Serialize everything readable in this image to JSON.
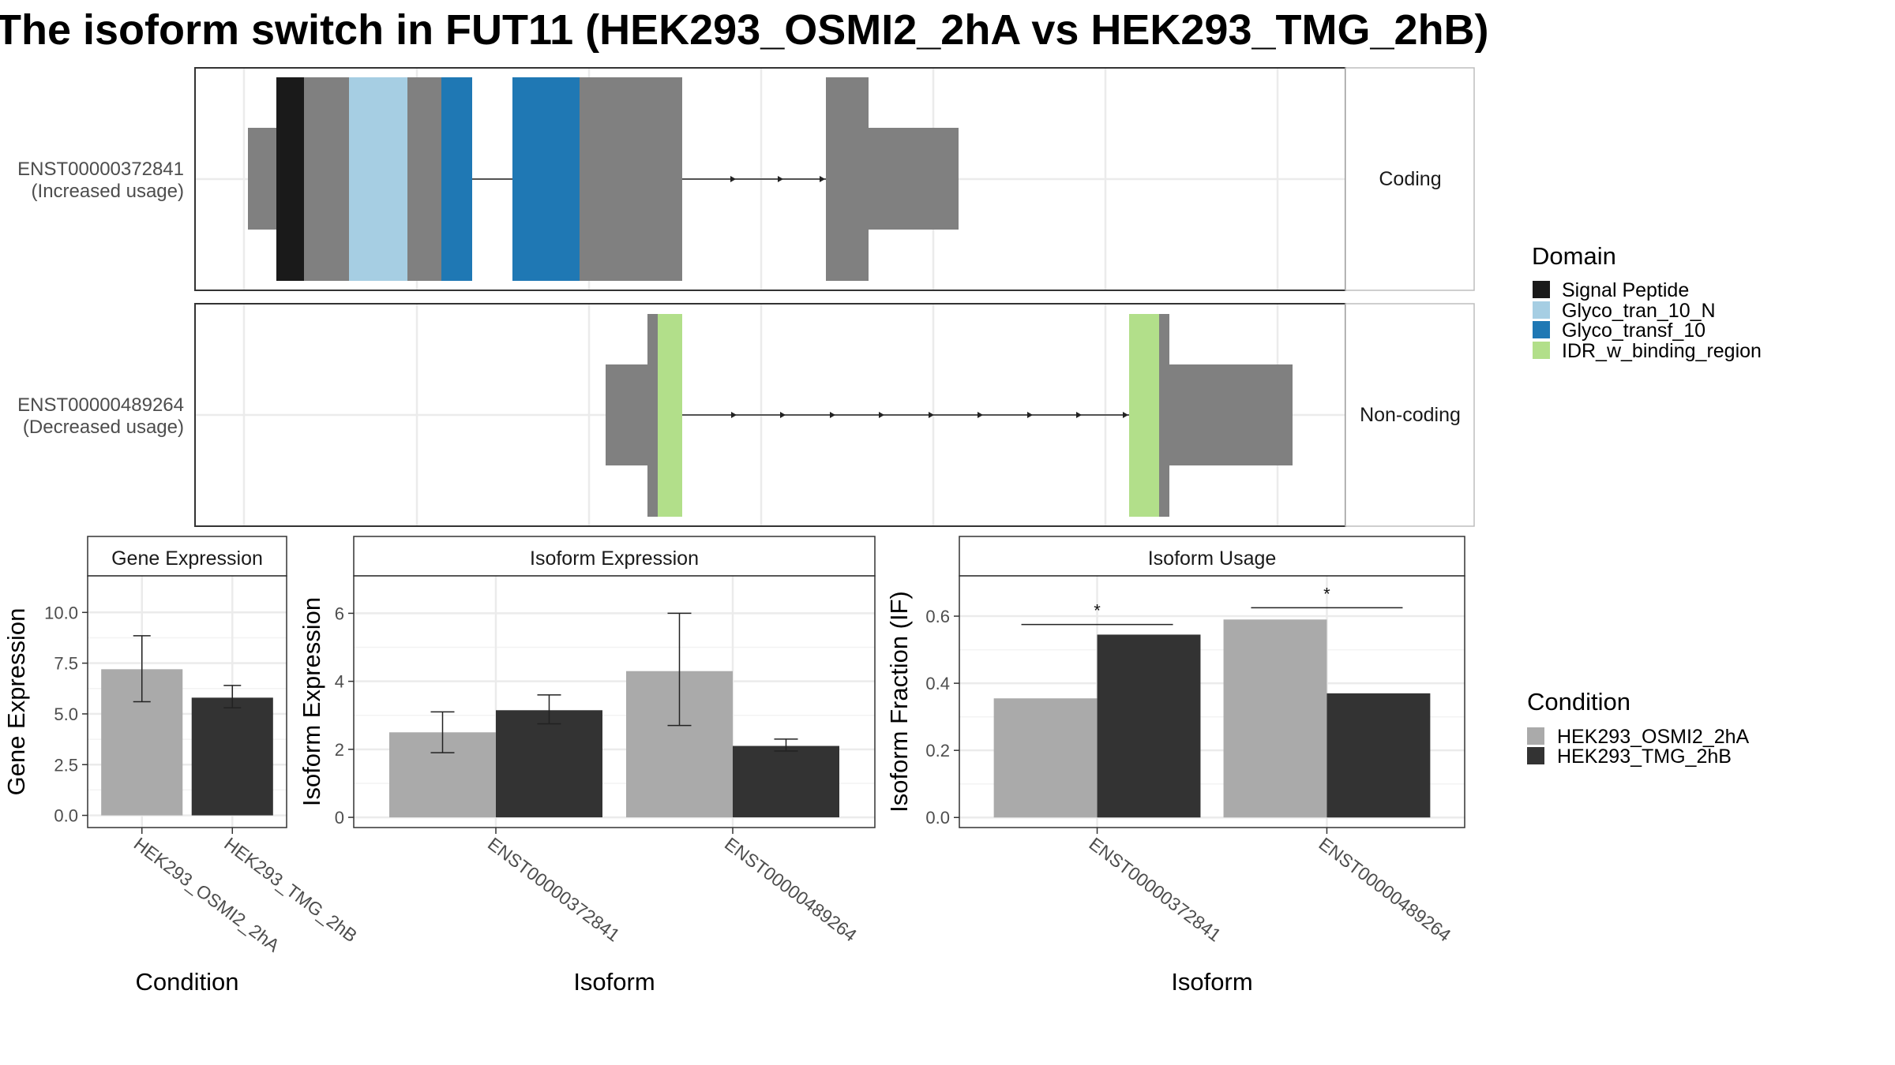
{
  "title": "The isoform switch in FUT11 (HEK293_OSMI2_2hA vs HEK293_TMG_2hB)",
  "transcripts": [
    {
      "id": "ENST00000372841",
      "label_line1": "ENST00000372841",
      "label_line2": "(Increased usage)",
      "strip": "Coding"
    },
    {
      "id": "ENST00000489264",
      "label_line1": "ENST00000489264",
      "label_line2": "(Decreased usage)",
      "strip": "Non-coding"
    }
  ],
  "domain_legend": {
    "title": "Domain",
    "items": [
      {
        "label": "Signal Peptide",
        "color": "#1a1a1a"
      },
      {
        "label": "Glyco_tran_10_N",
        "color": "#a6cee3"
      },
      {
        "label": "Glyco_transf_10",
        "color": "#1f78b4"
      },
      {
        "label": "IDR_w_binding_region",
        "color": "#b2df8a"
      }
    ]
  },
  "condition_legend": {
    "title": "Condition",
    "items": [
      {
        "label": "HEK293_OSMI2_2hA",
        "color": "#aaaaaa"
      },
      {
        "label": "HEK293_TMG_2hB",
        "color": "#333333"
      }
    ]
  },
  "colors": {
    "exon": "#808080",
    "panel_border": "#333333",
    "grid": "#ebebeb",
    "strip_fill": "#ffffff"
  },
  "chart_data": [
    {
      "type": "bar",
      "title": "Gene Expression",
      "xlabel": "Condition",
      "ylabel": "Gene Expression",
      "ylim": [
        -0.6,
        11.8
      ],
      "yticks": [
        0.0,
        2.5,
        5.0,
        7.5,
        10.0
      ],
      "ytick_labels": [
        "0.0",
        "2.5",
        "5.0",
        "7.5",
        "10.0"
      ],
      "categories": [
        "HEK293_OSMI2_2hA",
        "HEK293_TMG_2hB"
      ],
      "values": [
        7.2,
        5.8
      ],
      "err_low": [
        5.6,
        5.3
      ],
      "err_high": [
        8.85,
        6.4
      ]
    },
    {
      "type": "bar",
      "title": "Isoform Expression",
      "xlabel": "Isoform",
      "ylabel": "Isoform Expression",
      "ylim": [
        -0.3,
        7.1
      ],
      "yticks": [
        0,
        2,
        4,
        6
      ],
      "ytick_labels": [
        "0",
        "2",
        "4",
        "6"
      ],
      "categories": [
        "ENST00000372841",
        "ENST00000489264"
      ],
      "series": [
        {
          "name": "HEK293_OSMI2_2hA",
          "values": [
            2.5,
            4.3
          ],
          "err_low": [
            1.9,
            2.7
          ],
          "err_high": [
            3.1,
            6.0
          ]
        },
        {
          "name": "HEK293_TMG_2hB",
          "values": [
            3.15,
            2.1
          ],
          "err_low": [
            2.75,
            1.95
          ],
          "err_high": [
            3.6,
            2.3
          ]
        }
      ]
    },
    {
      "type": "bar",
      "title": "Isoform Usage",
      "xlabel": "Isoform",
      "ylabel": "Isoform Fraction (IF)",
      "ylim": [
        -0.03,
        0.72
      ],
      "yticks": [
        0.0,
        0.2,
        0.4,
        0.6
      ],
      "ytick_labels": [
        "0.0",
        "0.2",
        "0.4",
        "0.6"
      ],
      "categories": [
        "ENST00000372841",
        "ENST00000489264"
      ],
      "series": [
        {
          "name": "HEK293_OSMI2_2hA",
          "values": [
            0.355,
            0.59
          ]
        },
        {
          "name": "HEK293_TMG_2hB",
          "values": [
            0.545,
            0.37
          ]
        }
      ],
      "significance": [
        {
          "category": "ENST00000372841",
          "label": "*",
          "y": 0.575
        },
        {
          "category": "ENST00000489264",
          "label": "*",
          "y": 0.625
        }
      ]
    }
  ]
}
